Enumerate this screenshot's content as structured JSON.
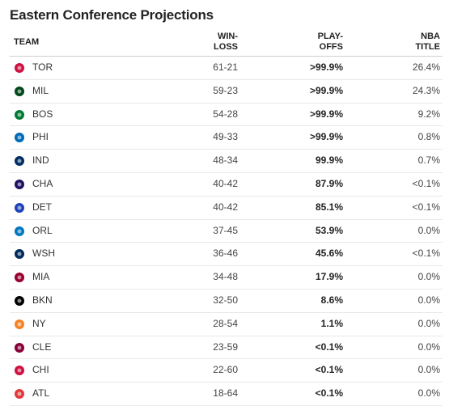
{
  "title": "Eastern Conference Projections",
  "headers": {
    "team": "TEAM",
    "winloss_line1": "WIN-",
    "winloss_line2": "LOSS",
    "playoffs_line1": "PLAY-",
    "playoffs_line2": "OFFS",
    "title_line1": "NBA",
    "title_line2": "TITLE"
  },
  "rows": [
    {
      "team": "TOR",
      "record": "61-21",
      "playoffs": ">99.9%",
      "nba_title": "26.4%",
      "logo": "raptors-logo-icon",
      "color": "#ce1141"
    },
    {
      "team": "MIL",
      "record": "59-23",
      "playoffs": ">99.9%",
      "nba_title": "24.3%",
      "logo": "bucks-logo-icon",
      "color": "#00471b"
    },
    {
      "team": "BOS",
      "record": "54-28",
      "playoffs": ">99.9%",
      "nba_title": "9.2%",
      "logo": "celtics-logo-icon",
      "color": "#007a33"
    },
    {
      "team": "PHI",
      "record": "49-33",
      "playoffs": ">99.9%",
      "nba_title": "0.8%",
      "logo": "76ers-logo-icon",
      "color": "#006bb6"
    },
    {
      "team": "IND",
      "record": "48-34",
      "playoffs": "99.9%",
      "nba_title": "0.7%",
      "logo": "pacers-logo-icon",
      "color": "#002d62"
    },
    {
      "team": "CHA",
      "record": "40-42",
      "playoffs": "87.9%",
      "nba_title": "<0.1%",
      "logo": "hornets-logo-icon",
      "color": "#1d1160"
    },
    {
      "team": "DET",
      "record": "40-42",
      "playoffs": "85.1%",
      "nba_title": "<0.1%",
      "logo": "pistons-logo-icon",
      "color": "#1d42ba"
    },
    {
      "team": "ORL",
      "record": "37-45",
      "playoffs": "53.9%",
      "nba_title": "0.0%",
      "logo": "magic-logo-icon",
      "color": "#0077c0"
    },
    {
      "team": "WSH",
      "record": "36-46",
      "playoffs": "45.6%",
      "nba_title": "<0.1%",
      "logo": "wizards-logo-icon",
      "color": "#002b5c"
    },
    {
      "team": "MIA",
      "record": "34-48",
      "playoffs": "17.9%",
      "nba_title": "0.0%",
      "logo": "heat-logo-icon",
      "color": "#98002e"
    },
    {
      "team": "BKN",
      "record": "32-50",
      "playoffs": "8.6%",
      "nba_title": "0.0%",
      "logo": "nets-logo-icon",
      "color": "#000000"
    },
    {
      "team": "NY",
      "record": "28-54",
      "playoffs": "1.1%",
      "nba_title": "0.0%",
      "logo": "knicks-logo-icon",
      "color": "#f58426"
    },
    {
      "team": "CLE",
      "record": "23-59",
      "playoffs": "<0.1%",
      "nba_title": "0.0%",
      "logo": "cavaliers-logo-icon",
      "color": "#860038"
    },
    {
      "team": "CHI",
      "record": "22-60",
      "playoffs": "<0.1%",
      "nba_title": "0.0%",
      "logo": "bulls-logo-icon",
      "color": "#ce1141"
    },
    {
      "team": "ATL",
      "record": "18-64",
      "playoffs": "<0.1%",
      "nba_title": "0.0%",
      "logo": "hawks-logo-icon",
      "color": "#e03a3e"
    }
  ]
}
